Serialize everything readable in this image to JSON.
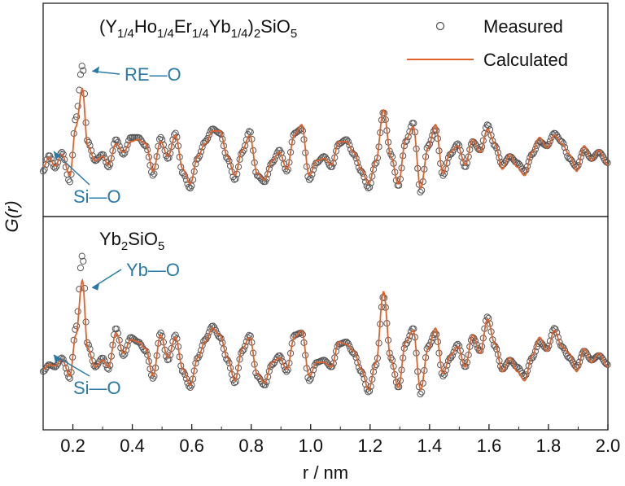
{
  "figure": {
    "y_axis_label": "G(r)",
    "x_axis_label": "r / nm",
    "x_ticks": [
      "0.2",
      "0.4",
      "0.6",
      "0.8",
      "1.0",
      "1.2",
      "1.4",
      "1.6",
      "1.8",
      "2.0"
    ]
  },
  "legend": {
    "measured": "Measured",
    "calculated": "Calculated"
  },
  "colors": {
    "measured": "#555555",
    "calculated": "#e2622c",
    "annotation": "#2a7aa8",
    "axis": "#222222"
  },
  "chart_data": [
    {
      "type": "line",
      "panel": "top",
      "composition": "(Y1/4Ho1/4Er1/4Yb1/4)2SiO5",
      "annotations": [
        {
          "text": "RE—O",
          "r": 0.232
        },
        {
          "text": "Si—O",
          "r": 0.163
        }
      ],
      "xlim": [
        0.1,
        2.0
      ],
      "x_ticks": [
        0.2,
        0.4,
        0.6,
        0.8,
        1.0,
        1.2,
        1.4,
        1.6,
        1.8,
        2.0
      ],
      "series": [
        {
          "name": "Measured",
          "style": "open-circles",
          "x": [
            0.1,
            0.12,
            0.14,
            0.163,
            0.19,
            0.21,
            0.232,
            0.25,
            0.275,
            0.3,
            0.32,
            0.345,
            0.37,
            0.395,
            0.42,
            0.445,
            0.47,
            0.495,
            0.52,
            0.545,
            0.57,
            0.595,
            0.62,
            0.645,
            0.67,
            0.695,
            0.72,
            0.745,
            0.77,
            0.795,
            0.82,
            0.845,
            0.87,
            0.895,
            0.92,
            0.945,
            0.97,
            0.995,
            1.02,
            1.045,
            1.07,
            1.095,
            1.12,
            1.145,
            1.17,
            1.195,
            1.22,
            1.245,
            1.27,
            1.295,
            1.32,
            1.345,
            1.37,
            1.395,
            1.42,
            1.445,
            1.47,
            1.495,
            1.52,
            1.545,
            1.57,
            1.595,
            1.62,
            1.645,
            1.67,
            1.695,
            1.72,
            1.745,
            1.77,
            1.795,
            1.82,
            1.845,
            1.87,
            1.895,
            1.92,
            1.945,
            1.97,
            2.0
          ],
          "y": [
            -0.4,
            0.35,
            -0.25,
            0.5,
            -0.9,
            2.1,
            4.6,
            1.0,
            0.1,
            0.4,
            -0.2,
            1.1,
            0.4,
            1.2,
            1.2,
            0.8,
            -0.6,
            1.2,
            0.2,
            1.4,
            -0.5,
            -1.2,
            0.2,
            1.0,
            1.6,
            1.4,
            0.2,
            -0.8,
            0.5,
            1.5,
            -0.6,
            -0.9,
            0.0,
            0.6,
            -0.4,
            1.4,
            1.6,
            -0.8,
            0.0,
            0.3,
            -0.2,
            0.9,
            1.1,
            0.4,
            -0.4,
            -1.2,
            0.0,
            2.4,
            0.4,
            -1.1,
            1.0,
            1.9,
            -1.4,
            0.8,
            1.6,
            -0.6,
            0.4,
            0.9,
            -0.2,
            1.0,
            0.6,
            1.8,
            0.8,
            -0.1,
            0.3,
            0.0,
            -0.4,
            0.4,
            1.0,
            0.8,
            1.4,
            1.0,
            0.2,
            -0.2,
            0.6,
            0.2,
            0.5,
            0.0
          ]
        },
        {
          "name": "Calculated",
          "style": "line",
          "x": [
            0.1,
            0.12,
            0.14,
            0.163,
            0.19,
            0.21,
            0.232,
            0.25,
            0.275,
            0.3,
            0.32,
            0.345,
            0.37,
            0.395,
            0.42,
            0.445,
            0.47,
            0.495,
            0.52,
            0.545,
            0.57,
            0.595,
            0.62,
            0.645,
            0.67,
            0.695,
            0.72,
            0.745,
            0.77,
            0.795,
            0.82,
            0.845,
            0.87,
            0.895,
            0.92,
            0.945,
            0.97,
            0.995,
            1.02,
            1.045,
            1.07,
            1.095,
            1.12,
            1.145,
            1.17,
            1.195,
            1.22,
            1.245,
            1.27,
            1.295,
            1.32,
            1.345,
            1.37,
            1.395,
            1.42,
            1.445,
            1.47,
            1.495,
            1.52,
            1.545,
            1.57,
            1.595,
            1.62,
            1.645,
            1.67,
            1.695,
            1.72,
            1.745,
            1.77,
            1.795,
            1.82,
            1.845,
            1.87,
            1.895,
            1.92,
            1.945,
            1.97,
            2.0
          ],
          "y": [
            -0.2,
            0.25,
            -0.15,
            0.4,
            -0.6,
            1.7,
            3.5,
            0.8,
            0.1,
            0.3,
            -0.1,
            0.9,
            0.5,
            1.0,
            1.1,
            0.9,
            -0.4,
            1.0,
            0.3,
            1.3,
            -0.3,
            -1.0,
            0.3,
            0.9,
            1.5,
            1.5,
            0.3,
            -0.6,
            0.6,
            1.3,
            -0.5,
            -0.8,
            0.1,
            0.5,
            -0.3,
            1.3,
            1.8,
            -0.6,
            0.1,
            0.2,
            -0.1,
            1.0,
            1.0,
            0.5,
            -0.3,
            -1.0,
            0.1,
            2.5,
            0.3,
            -1.0,
            1.1,
            1.7,
            -1.2,
            0.7,
            1.8,
            -0.5,
            0.5,
            0.8,
            -0.1,
            1.1,
            0.5,
            1.6,
            0.9,
            -0.3,
            0.4,
            -0.2,
            -0.6,
            0.5,
            1.2,
            0.7,
            1.3,
            0.9,
            0.4,
            -0.4,
            0.8,
            0.1,
            0.6,
            -0.1
          ]
        }
      ]
    },
    {
      "type": "line",
      "panel": "bottom",
      "composition": "Yb2SiO5",
      "annotations": [
        {
          "text": "Yb—O",
          "r": 0.232
        },
        {
          "text": "Si—O",
          "r": 0.163
        }
      ],
      "xlim": [
        0.1,
        2.0
      ],
      "x_ticks": [
        0.2,
        0.4,
        0.6,
        0.8,
        1.0,
        1.2,
        1.4,
        1.6,
        1.8,
        2.0
      ],
      "series": [
        {
          "name": "Measured",
          "style": "open-circles",
          "x": [
            0.1,
            0.12,
            0.14,
            0.163,
            0.19,
            0.21,
            0.232,
            0.25,
            0.275,
            0.3,
            0.32,
            0.345,
            0.37,
            0.395,
            0.42,
            0.445,
            0.47,
            0.495,
            0.52,
            0.545,
            0.57,
            0.595,
            0.62,
            0.645,
            0.67,
            0.695,
            0.72,
            0.745,
            0.77,
            0.795,
            0.82,
            0.845,
            0.87,
            0.895,
            0.92,
            0.945,
            0.97,
            0.995,
            1.02,
            1.045,
            1.07,
            1.095,
            1.12,
            1.145,
            1.17,
            1.195,
            1.22,
            1.245,
            1.27,
            1.295,
            1.32,
            1.345,
            1.37,
            1.395,
            1.42,
            1.445,
            1.47,
            1.495,
            1.52,
            1.545,
            1.57,
            1.595,
            1.62,
            1.645,
            1.67,
            1.695,
            1.72,
            1.745,
            1.77,
            1.795,
            1.82,
            1.845,
            1.87,
            1.895,
            1.92,
            1.945,
            1.97,
            2.0
          ],
          "y": [
            -0.3,
            0.0,
            -0.1,
            0.3,
            -0.6,
            1.6,
            4.8,
            0.9,
            -0.1,
            0.3,
            -0.2,
            1.6,
            0.4,
            1.2,
            1.0,
            0.6,
            -0.6,
            1.4,
            0.2,
            1.3,
            -0.3,
            -1.0,
            0.3,
            1.1,
            1.7,
            1.2,
            0.2,
            -0.8,
            0.6,
            1.3,
            -0.5,
            -0.9,
            0.0,
            0.4,
            -0.3,
            1.3,
            1.4,
            -0.7,
            0.1,
            0.2,
            -0.1,
            0.9,
            1.0,
            0.5,
            -0.3,
            -1.2,
            0.0,
            3.0,
            0.3,
            -1.0,
            0.9,
            1.6,
            -1.3,
            0.8,
            1.4,
            -0.5,
            0.3,
            0.9,
            -0.1,
            1.2,
            0.6,
            2.1,
            0.8,
            -0.2,
            0.2,
            -0.1,
            -0.5,
            0.3,
            1.0,
            0.7,
            1.6,
            0.8,
            0.3,
            -0.1,
            0.6,
            0.2,
            0.4,
            0.0
          ]
        },
        {
          "name": "Calculated",
          "style": "line",
          "x": [
            0.1,
            0.12,
            0.14,
            0.163,
            0.19,
            0.21,
            0.232,
            0.25,
            0.275,
            0.3,
            0.32,
            0.345,
            0.37,
            0.395,
            0.42,
            0.445,
            0.47,
            0.495,
            0.52,
            0.545,
            0.57,
            0.595,
            0.62,
            0.645,
            0.67,
            0.695,
            0.72,
            0.745,
            0.77,
            0.795,
            0.82,
            0.845,
            0.87,
            0.895,
            0.92,
            0.945,
            0.97,
            0.995,
            1.02,
            1.045,
            1.07,
            1.095,
            1.12,
            1.145,
            1.17,
            1.195,
            1.22,
            1.245,
            1.27,
            1.295,
            1.32,
            1.345,
            1.37,
            1.395,
            1.42,
            1.445,
            1.47,
            1.495,
            1.52,
            1.545,
            1.57,
            1.595,
            1.62,
            1.645,
            1.67,
            1.695,
            1.72,
            1.745,
            1.77,
            1.795,
            1.82,
            1.845,
            1.87,
            1.895,
            1.92,
            1.945,
            1.97,
            2.0
          ],
          "y": [
            -0.2,
            0.0,
            -0.05,
            0.25,
            -0.5,
            1.3,
            3.7,
            0.7,
            -0.1,
            0.2,
            -0.1,
            1.4,
            0.5,
            1.1,
            1.0,
            0.7,
            -0.5,
            1.3,
            0.3,
            1.2,
            -0.2,
            -0.9,
            0.3,
            1.0,
            1.6,
            1.3,
            0.3,
            -0.7,
            0.7,
            1.2,
            -0.4,
            -0.8,
            0.1,
            0.3,
            -0.2,
            1.2,
            1.5,
            -0.5,
            0.1,
            0.1,
            -0.1,
            1.0,
            0.9,
            0.6,
            -0.2,
            -1.1,
            0.1,
            3.2,
            0.2,
            -1.0,
            1.0,
            1.5,
            -1.1,
            0.7,
            1.6,
            -0.4,
            0.4,
            0.8,
            -0.1,
            1.3,
            0.5,
            2.0,
            0.9,
            -0.3,
            0.3,
            -0.3,
            -0.7,
            0.4,
            1.2,
            0.6,
            1.5,
            0.8,
            0.5,
            -0.3,
            0.7,
            0.1,
            0.5,
            -0.1
          ]
        }
      ]
    }
  ]
}
